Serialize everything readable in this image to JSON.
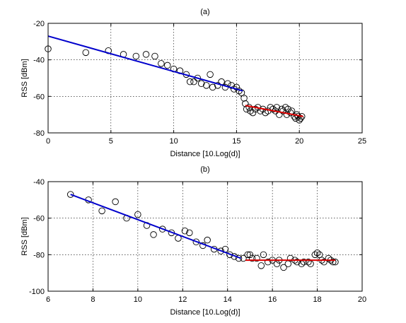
{
  "chart_data": [
    {
      "type": "scatter",
      "title": "(a)",
      "xlabel": "Distance [10.Log(d)]",
      "ylabel": "RSS [dBm]",
      "xlim": [
        0,
        25
      ],
      "ylim": [
        -80,
        -20
      ],
      "xticks": [
        0,
        5,
        10,
        15,
        20,
        25
      ],
      "yticks": [
        -20,
        -40,
        -60,
        -80
      ],
      "grid": true,
      "colors": {
        "points": "#000000",
        "fit1": "#0000cc",
        "fit2": "#dd0000"
      },
      "points": [
        [
          0.0,
          -34
        ],
        [
          3.0,
          -36
        ],
        [
          4.8,
          -35
        ],
        [
          6.0,
          -37
        ],
        [
          7.0,
          -38
        ],
        [
          7.8,
          -37
        ],
        [
          8.5,
          -38
        ],
        [
          9.0,
          -42
        ],
        [
          9.5,
          -43
        ],
        [
          10.0,
          -45
        ],
        [
          10.5,
          -46
        ],
        [
          11.0,
          -48
        ],
        [
          11.3,
          -52
        ],
        [
          11.6,
          -52
        ],
        [
          11.9,
          -50
        ],
        [
          12.2,
          -53
        ],
        [
          12.6,
          -54
        ],
        [
          12.9,
          -48
        ],
        [
          13.1,
          -55
        ],
        [
          13.5,
          -54
        ],
        [
          13.8,
          -52
        ],
        [
          14.1,
          -55
        ],
        [
          14.3,
          -53
        ],
        [
          14.6,
          -54
        ],
        [
          14.8,
          -56
        ],
        [
          15.0,
          -55
        ],
        [
          15.2,
          -57
        ],
        [
          15.4,
          -58
        ],
        [
          15.6,
          -61
        ],
        [
          15.7,
          -64
        ],
        [
          15.8,
          -67
        ],
        [
          16.0,
          -66
        ],
        [
          16.1,
          -68
        ],
        [
          16.3,
          -69
        ],
        [
          16.5,
          -67
        ],
        [
          16.7,
          -66
        ],
        [
          16.9,
          -68
        ],
        [
          17.1,
          -67
        ],
        [
          17.3,
          -69
        ],
        [
          17.5,
          -68
        ],
        [
          17.7,
          -66
        ],
        [
          17.9,
          -67
        ],
        [
          18.1,
          -68
        ],
        [
          18.2,
          -66
        ],
        [
          18.4,
          -70
        ],
        [
          18.6,
          -67
        ],
        [
          18.7,
          -68
        ],
        [
          18.9,
          -66
        ],
        [
          19.0,
          -70
        ],
        [
          19.1,
          -67
        ],
        [
          19.3,
          -69
        ],
        [
          19.4,
          -68
        ],
        [
          19.6,
          -71
        ],
        [
          19.7,
          -72
        ],
        [
          19.8,
          -70
        ],
        [
          19.9,
          -71
        ],
        [
          20.0,
          -73
        ],
        [
          20.1,
          -72
        ],
        [
          20.2,
          -71
        ]
      ],
      "series": [
        {
          "x": [
            0,
            15.5
          ],
          "y": [
            -27,
            -57
          ]
        },
        {
          "x": [
            15.7,
            20.3
          ],
          "y": [
            -65,
            -71
          ]
        }
      ]
    },
    {
      "type": "scatter",
      "title": "(b)",
      "xlabel": "Distance [10.Log(d)]",
      "ylabel": "RSS [dBm]",
      "xlim": [
        6,
        20
      ],
      "ylim": [
        -100,
        -40
      ],
      "xticks": [
        6,
        8,
        10,
        12,
        14,
        16,
        18,
        20
      ],
      "yticks": [
        -40,
        -60,
        -80,
        -100
      ],
      "grid": true,
      "colors": {
        "points": "#000000",
        "fit1": "#0000cc",
        "fit2": "#dd0000"
      },
      "points": [
        [
          7.0,
          -47
        ],
        [
          7.8,
          -50
        ],
        [
          8.4,
          -56
        ],
        [
          9.0,
          -51
        ],
        [
          9.5,
          -60
        ],
        [
          10.0,
          -58
        ],
        [
          10.4,
          -64
        ],
        [
          10.7,
          -69
        ],
        [
          11.1,
          -66
        ],
        [
          11.5,
          -68
        ],
        [
          11.8,
          -71
        ],
        [
          12.1,
          -67
        ],
        [
          12.3,
          -68
        ],
        [
          12.6,
          -73
        ],
        [
          12.9,
          -75
        ],
        [
          13.1,
          -72
        ],
        [
          13.4,
          -77
        ],
        [
          13.7,
          -78
        ],
        [
          13.9,
          -77
        ],
        [
          14.1,
          -80
        ],
        [
          14.3,
          -81
        ],
        [
          14.5,
          -82
        ],
        [
          14.7,
          -82
        ],
        [
          14.9,
          -80
        ],
        [
          15.0,
          -80
        ],
        [
          15.1,
          -82
        ],
        [
          15.3,
          -82
        ],
        [
          15.5,
          -86
        ],
        [
          15.6,
          -80
        ],
        [
          15.8,
          -84
        ],
        [
          16.0,
          -83
        ],
        [
          16.2,
          -85
        ],
        [
          16.3,
          -83
        ],
        [
          16.5,
          -87
        ],
        [
          16.7,
          -85
        ],
        [
          16.8,
          -82
        ],
        [
          17.0,
          -83
        ],
        [
          17.1,
          -84
        ],
        [
          17.3,
          -85
        ],
        [
          17.4,
          -84
        ],
        [
          17.6,
          -84
        ],
        [
          17.7,
          -85
        ],
        [
          17.9,
          -80
        ],
        [
          18.0,
          -79
        ],
        [
          18.1,
          -80
        ],
        [
          18.2,
          -83
        ],
        [
          18.3,
          -84
        ],
        [
          18.5,
          -82
        ],
        [
          18.6,
          -83
        ],
        [
          18.7,
          -84
        ],
        [
          18.8,
          -84
        ]
      ],
      "series": [
        {
          "x": [
            7.0,
            14.6
          ],
          "y": [
            -47,
            -82
          ]
        },
        {
          "x": [
            14.8,
            18.8
          ],
          "y": [
            -83,
            -83
          ]
        }
      ]
    }
  ]
}
